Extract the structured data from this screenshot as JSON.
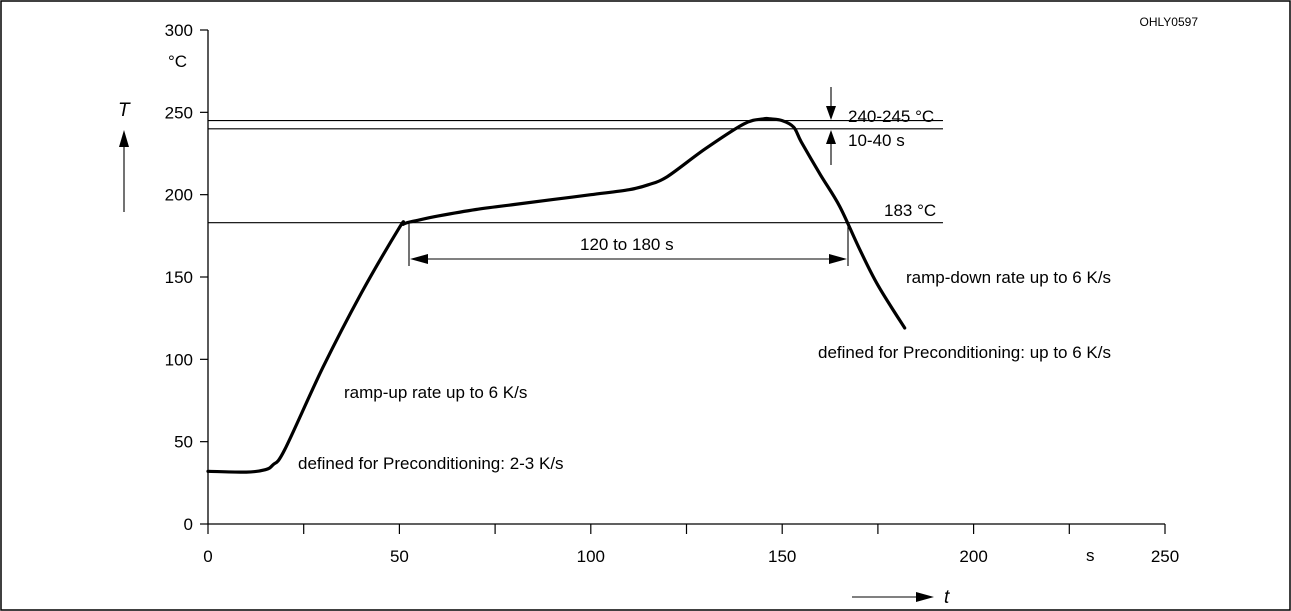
{
  "figure_id": "OHLY0597",
  "chart_data": {
    "type": "line",
    "xlabel": "t",
    "ylabel": "T",
    "x_unit": "s",
    "y_unit": "°C",
    "xlim": [
      0,
      250
    ],
    "ylim": [
      0,
      300
    ],
    "x_ticks": [
      0,
      25,
      50,
      75,
      100,
      125,
      150,
      175,
      200,
      225,
      250
    ],
    "x_tick_labels": [
      {
        "value": 0,
        "label": "0"
      },
      {
        "value": 50,
        "label": "50"
      },
      {
        "value": 100,
        "label": "100"
      },
      {
        "value": 150,
        "label": "150"
      },
      {
        "value": 200,
        "label": "200"
      },
      {
        "value": 250,
        "label": "250"
      }
    ],
    "y_ticks": [
      0,
      50,
      100,
      150,
      200,
      250,
      300
    ],
    "y_tick_labels": [
      {
        "value": 0,
        "label": "0"
      },
      {
        "value": 50,
        "label": "50"
      },
      {
        "value": 100,
        "label": "100"
      },
      {
        "value": 150,
        "label": "150"
      },
      {
        "value": 200,
        "label": "200"
      },
      {
        "value": 250,
        "label": "250"
      },
      {
        "value": 300,
        "label": "300"
      }
    ],
    "grid": false,
    "series": [
      {
        "x": [
          0,
          10,
          15,
          17,
          20,
          30,
          40,
          50,
          51,
          52,
          54,
          60,
          70,
          80,
          90,
          100,
          110,
          115,
          120,
          130,
          140,
          145,
          147,
          150,
          153,
          155,
          160,
          165,
          170,
          175,
          182
        ],
        "y": [
          32,
          31.5,
          33,
          36,
          45,
          95,
          140,
          180,
          182,
          183,
          184,
          187,
          191,
          194,
          197,
          200,
          203,
          206,
          211,
          228,
          243,
          246,
          246,
          245,
          241,
          232,
          212,
          193,
          168,
          145,
          119
        ]
      }
    ],
    "reference_lines": [
      {
        "y": 245,
        "x_start": 0,
        "x_end": 192
      },
      {
        "y": 240,
        "x_start": 0,
        "x_end": 192
      },
      {
        "y": 183,
        "x_start": 0,
        "x_end": 192
      }
    ],
    "annotations": {
      "peak_temp": "240-245 °C",
      "peak_time": "10-40 s",
      "liquidus": "183 °C",
      "liquidus_time": "120 to 180 s",
      "ramp_up": "ramp-up rate up to 6 K/s",
      "ramp_up_precond": "defined for Preconditioning: 2-3 K/s",
      "ramp_down": "ramp-down rate up to 6 K/s",
      "ramp_down_precond": "defined for Preconditioning: up to 6 K/s"
    }
  }
}
